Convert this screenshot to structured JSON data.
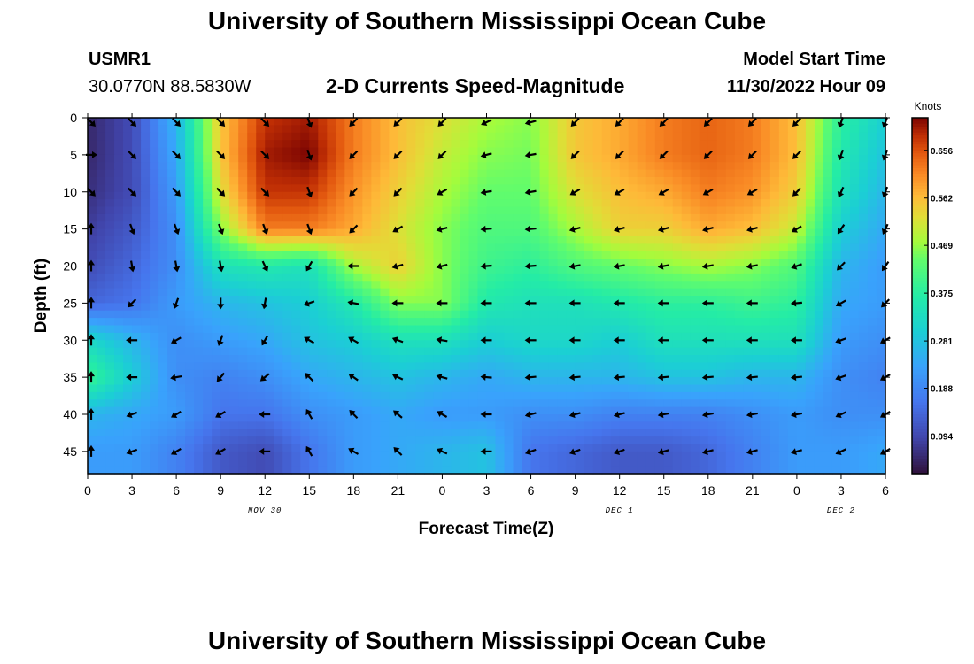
{
  "header": {
    "title": "University of Southern Mississippi Ocean Cube",
    "station_id": "USMR1",
    "station_coords": "30.0770N  88.5830W",
    "subtitle": "2-D Currents Speed-Magnitude",
    "model_label": "Model Start Time",
    "model_time": "11/30/2022 Hour 09"
  },
  "footer": {
    "title": "University of Southern Mississippi Ocean Cube"
  },
  "colors": {
    "frame": "#000000",
    "arrow": "#000000"
  },
  "chart_data": {
    "type": "heatmap",
    "title": "2-D Currents Speed-Magnitude",
    "xlabel": "Forecast Time(Z)",
    "ylabel": "Depth (ft)",
    "x_tick_labels": [
      "0",
      "3",
      "6",
      "9",
      "12",
      "15",
      "18",
      "21",
      "0",
      "3",
      "6",
      "9",
      "12",
      "15",
      "18",
      "21",
      "0",
      "3",
      "6"
    ],
    "x_range_hours": [
      0,
      54
    ],
    "date_labels": [
      {
        "text": "NOV 30",
        "hour": 12
      },
      {
        "text": "DEC 1",
        "hour": 36
      },
      {
        "text": "DEC 2",
        "hour": 51
      }
    ],
    "y_tick_labels": [
      "0",
      "5",
      "10",
      "15",
      "20",
      "25",
      "30",
      "35",
      "40",
      "45"
    ],
    "y_range_ft": [
      0,
      48
    ],
    "colorbar": {
      "unit": "Knots",
      "tick_labels": [
        "0.656",
        "0.562",
        "0.469",
        "0.375",
        "0.281",
        "0.188",
        "0.094"
      ],
      "range": [
        0.02,
        0.72
      ]
    },
    "speed_hours": [
      0,
      3,
      6,
      9,
      12,
      15,
      18,
      21,
      24,
      27,
      30,
      33,
      36,
      39,
      42,
      45,
      48,
      51,
      54
    ],
    "speed_depths_ft": [
      0,
      5,
      10,
      15,
      20,
      25,
      30,
      35,
      40,
      45
    ],
    "speed_knots": [
      [
        0.05,
        0.1,
        0.26,
        0.55,
        0.68,
        0.7,
        0.62,
        0.56,
        0.52,
        0.48,
        0.46,
        0.55,
        0.58,
        0.62,
        0.64,
        0.62,
        0.56,
        0.38,
        0.3
      ],
      [
        0.05,
        0.1,
        0.24,
        0.55,
        0.7,
        0.72,
        0.62,
        0.56,
        0.5,
        0.46,
        0.45,
        0.55,
        0.58,
        0.62,
        0.64,
        0.62,
        0.56,
        0.36,
        0.28
      ],
      [
        0.06,
        0.1,
        0.22,
        0.52,
        0.68,
        0.68,
        0.6,
        0.54,
        0.48,
        0.44,
        0.44,
        0.52,
        0.56,
        0.58,
        0.62,
        0.6,
        0.54,
        0.34,
        0.26
      ],
      [
        0.08,
        0.12,
        0.2,
        0.46,
        0.62,
        0.62,
        0.58,
        0.52,
        0.46,
        0.42,
        0.42,
        0.48,
        0.54,
        0.54,
        0.58,
        0.56,
        0.5,
        0.3,
        0.24
      ],
      [
        0.1,
        0.14,
        0.2,
        0.34,
        0.36,
        0.34,
        0.48,
        0.54,
        0.46,
        0.4,
        0.38,
        0.42,
        0.44,
        0.46,
        0.48,
        0.46,
        0.42,
        0.26,
        0.22
      ],
      [
        0.14,
        0.16,
        0.22,
        0.26,
        0.28,
        0.3,
        0.36,
        0.46,
        0.46,
        0.36,
        0.34,
        0.34,
        0.36,
        0.38,
        0.38,
        0.4,
        0.38,
        0.24,
        0.22
      ],
      [
        0.32,
        0.26,
        0.2,
        0.22,
        0.24,
        0.28,
        0.3,
        0.34,
        0.34,
        0.3,
        0.32,
        0.32,
        0.3,
        0.34,
        0.34,
        0.34,
        0.34,
        0.22,
        0.2
      ],
      [
        0.4,
        0.3,
        0.2,
        0.18,
        0.2,
        0.24,
        0.26,
        0.28,
        0.26,
        0.24,
        0.26,
        0.26,
        0.26,
        0.28,
        0.28,
        0.26,
        0.26,
        0.2,
        0.18
      ],
      [
        0.26,
        0.24,
        0.22,
        0.16,
        0.16,
        0.2,
        0.22,
        0.24,
        0.22,
        0.22,
        0.2,
        0.2,
        0.18,
        0.18,
        0.18,
        0.2,
        0.22,
        0.2,
        0.2
      ],
      [
        0.22,
        0.22,
        0.18,
        0.12,
        0.1,
        0.16,
        0.22,
        0.24,
        0.26,
        0.28,
        0.16,
        0.14,
        0.12,
        0.12,
        0.14,
        0.18,
        0.22,
        0.22,
        0.24
      ]
    ],
    "arrow_directions_deg": [
      [
        135,
        135,
        135,
        135,
        135,
        160,
        225,
        225,
        225,
        245,
        255,
        225,
        225,
        225,
        225,
        225,
        225,
        200,
        200
      ],
      [
        90,
        135,
        135,
        135,
        135,
        160,
        225,
        225,
        225,
        255,
        260,
        225,
        225,
        225,
        225,
        225,
        225,
        200,
        200
      ],
      [
        135,
        135,
        135,
        135,
        135,
        160,
        225,
        225,
        240,
        260,
        260,
        240,
        240,
        240,
        240,
        240,
        225,
        205,
        200
      ],
      [
        0,
        160,
        160,
        160,
        160,
        160,
        225,
        240,
        255,
        265,
        265,
        255,
        255,
        255,
        255,
        255,
        240,
        215,
        205
      ],
      [
        0,
        170,
        170,
        170,
        155,
        210,
        270,
        255,
        255,
        265,
        265,
        260,
        260,
        260,
        260,
        260,
        250,
        225,
        215
      ],
      [
        0,
        225,
        200,
        180,
        190,
        250,
        280,
        270,
        270,
        270,
        270,
        270,
        270,
        270,
        270,
        270,
        265,
        240,
        225
      ],
      [
        0,
        270,
        240,
        200,
        210,
        300,
        300,
        290,
        280,
        270,
        270,
        270,
        270,
        270,
        270,
        270,
        270,
        250,
        240
      ],
      [
        0,
        270,
        260,
        220,
        230,
        315,
        305,
        295,
        285,
        275,
        265,
        265,
        265,
        265,
        265,
        265,
        265,
        250,
        240
      ],
      [
        0,
        250,
        240,
        240,
        270,
        330,
        315,
        310,
        300,
        270,
        255,
        255,
        255,
        260,
        260,
        260,
        260,
        245,
        240
      ],
      [
        0,
        250,
        240,
        240,
        270,
        330,
        300,
        315,
        295,
        270,
        250,
        250,
        250,
        255,
        255,
        255,
        255,
        245,
        240
      ]
    ]
  }
}
